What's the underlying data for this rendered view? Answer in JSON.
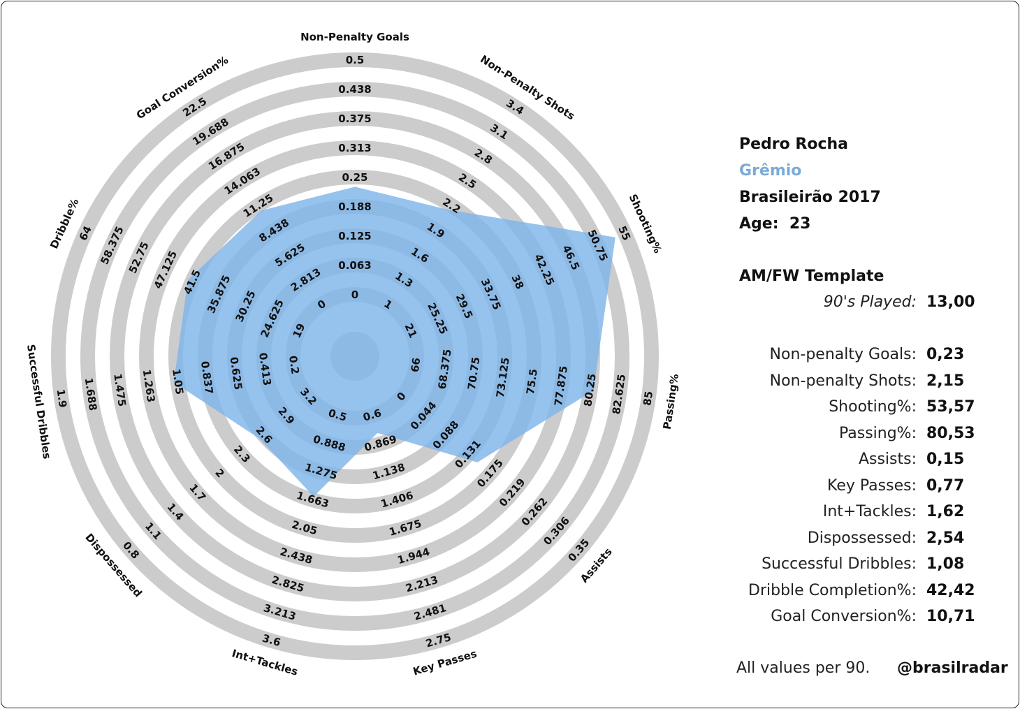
{
  "player": {
    "name": "Pedro Rocha",
    "team": "Grêmio",
    "competition": "Brasileirão 2017",
    "age_label": "Age:",
    "age": "23"
  },
  "template_title": "AM/FW Template",
  "played": {
    "label": "90's Played:",
    "value": "13,00"
  },
  "stats": [
    {
      "label": "Non-penalty Goals:",
      "value": "0,23"
    },
    {
      "label": "Non-penalty Shots:",
      "value": "2,15"
    },
    {
      "label": "Shooting%:",
      "value": "53,57"
    },
    {
      "label": "Passing%:",
      "value": "80,53"
    },
    {
      "label": "Assists:",
      "value": "0,15"
    },
    {
      "label": "Key Passes:",
      "value": "0,77"
    },
    {
      "label": "Int+Tackles:",
      "value": "1,62"
    },
    {
      "label": "Dispossessed:",
      "value": "2,54"
    },
    {
      "label": "Successful Dribbles:",
      "value": "1,08"
    },
    {
      "label": "Dribble Completion%:",
      "value": "42,42"
    },
    {
      "label": "Goal Conversion%:",
      "value": "10,71"
    }
  ],
  "footer": {
    "note": "All values per 90.",
    "handle": "@brasilradar"
  },
  "colors": {
    "ring": "#cccccc",
    "fill": "#7fb4ea",
    "team": "#7aabd8"
  },
  "chart_data": {
    "type": "radar",
    "axes": [
      {
        "name": "Non-Penalty Goals",
        "ticks": [
          "0",
          "0.063",
          "0.125",
          "0.188",
          "0.25",
          "0.313",
          "0.375",
          "0.438",
          "0.5"
        ],
        "min": 0,
        "max": 0.5,
        "value": 0.23
      },
      {
        "name": "Non-Penalty Shots",
        "ticks": [
          "1",
          "1.3",
          "1.6",
          "1.9",
          "2.2",
          "2.5",
          "2.8",
          "3.1",
          "3.4"
        ],
        "min": 1,
        "max": 3.4,
        "value": 2.15
      },
      {
        "name": "Shooting%",
        "ticks": [
          "21",
          "25.25",
          "29.5",
          "33.75",
          "38",
          "42.25",
          "46.5",
          "50.75",
          "55"
        ],
        "min": 21,
        "max": 55,
        "value": 53.57
      },
      {
        "name": "Passing%",
        "ticks": [
          "66",
          "68.375",
          "70.75",
          "73.125",
          "75.5",
          "77.875",
          "80.25",
          "82.625",
          "85"
        ],
        "min": 66,
        "max": 85,
        "value": 80.53
      },
      {
        "name": "Assists",
        "ticks": [
          "0",
          "0.044",
          "0.088",
          "0.131",
          "0.175",
          "0.219",
          "0.262",
          "0.306",
          "0.35"
        ],
        "min": 0,
        "max": 0.35,
        "value": 0.15
      },
      {
        "name": "Key Passes",
        "ticks": [
          "0.6",
          "0.869",
          "1.138",
          "1.406",
          "1.675",
          "1.944",
          "2.213",
          "2.481",
          "2.75"
        ],
        "min": 0.6,
        "max": 2.75,
        "value": 0.77
      },
      {
        "name": "Int+Tackles",
        "ticks": [
          "0.5",
          "0.888",
          "1.275",
          "1.663",
          "2.05",
          "2.438",
          "2.825",
          "3.213",
          "3.6"
        ],
        "min": 0.5,
        "max": 3.6,
        "value": 1.62
      },
      {
        "name": "Dispossessed",
        "ticks": [
          "3.2",
          "2.9",
          "2.6",
          "2.3",
          "2",
          "1.7",
          "1.4",
          "1.1",
          "0.8"
        ],
        "min": 3.2,
        "max": 0.8,
        "value": 2.54
      },
      {
        "name": "Successful Dribbles",
        "ticks": [
          "0.2",
          "0.413",
          "0.625",
          "0.837",
          "1.05",
          "1.263",
          "1.475",
          "1.688",
          "1.9"
        ],
        "min": 0.2,
        "max": 1.9,
        "value": 1.08
      },
      {
        "name": "Dribble%",
        "ticks": [
          "19",
          "24.625",
          "30.25",
          "35.875",
          "41.5",
          "47.125",
          "52.75",
          "58.375",
          "64"
        ],
        "min": 19,
        "max": 64,
        "value": 42.42
      },
      {
        "name": "Goal Conversion%",
        "ticks": [
          "0",
          "2.813",
          "5.625",
          "8.438",
          "11.25",
          "14.063",
          "16.875",
          "19.688",
          "22.5"
        ],
        "min": 0,
        "max": 22.5,
        "value": 10.71
      }
    ]
  }
}
